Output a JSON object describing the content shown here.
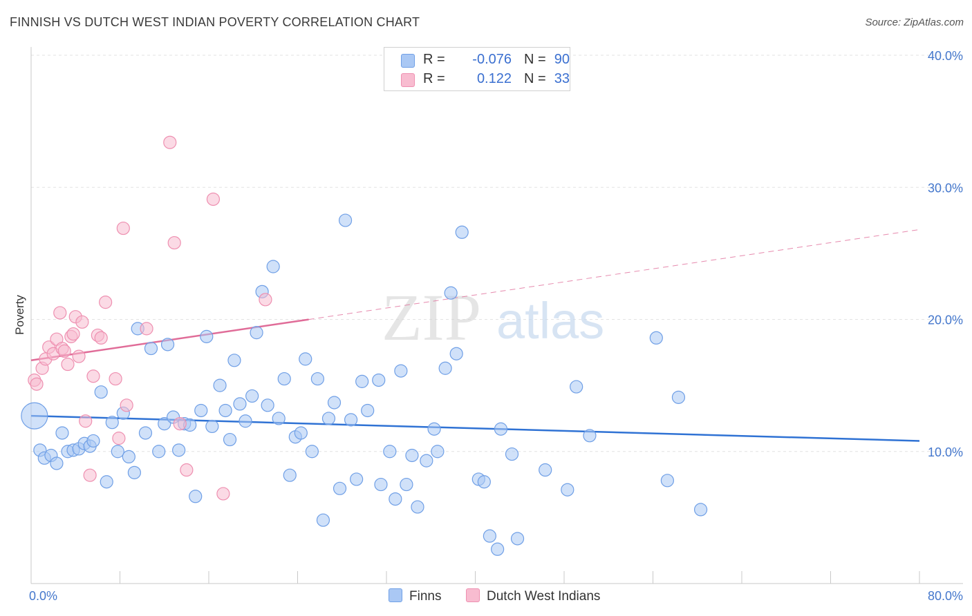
{
  "header": {
    "title": "FINNISH VS DUTCH WEST INDIAN POVERTY CORRELATION CHART",
    "source": "Source: ZipAtlas.com"
  },
  "watermark": {
    "zip": "ZIP",
    "atlas": "atlas"
  },
  "legend": {
    "rows": [
      {
        "r_label": "R =",
        "r_value": "-0.076",
        "n_label": "N =",
        "n_value": "90",
        "color": "#aac8f4"
      },
      {
        "r_label": "R =",
        "r_value": "0.122",
        "n_label": "N =",
        "n_value": "33",
        "color": "#f8bcd0"
      }
    ]
  },
  "bottom_legend": [
    {
      "label": "Finns",
      "color": "#aac8f4"
    },
    {
      "label": "Dutch West Indians",
      "color": "#f8bcd0"
    }
  ],
  "chart_data": {
    "type": "scatter",
    "title": "FINNISH VS DUTCH WEST INDIAN POVERTY CORRELATION CHART",
    "xlabel": "",
    "ylabel": "Poverty",
    "xlim": [
      0,
      80
    ],
    "ylim": [
      0,
      40
    ],
    "x_tick_labels": [
      "0.0%",
      "80.0%"
    ],
    "y_ticks": [
      10,
      20,
      30,
      40
    ],
    "y_tick_labels": [
      "10.0%",
      "20.0%",
      "30.0%",
      "40.0%"
    ],
    "grid": true,
    "legend_position": "top-center",
    "series": [
      {
        "name": "Finns",
        "color": "#6f9fe6",
        "fill": "#aac8f4",
        "trend": {
          "x": [
            0,
            80
          ],
          "y": [
            12.7,
            10.8
          ],
          "color": "#2f72d4",
          "dashed_from": null
        },
        "points": [
          [
            0.3,
            12.7,
            "large"
          ],
          [
            0.8,
            10.1
          ],
          [
            1.2,
            9.5
          ],
          [
            1.8,
            9.7
          ],
          [
            2.3,
            9.1
          ],
          [
            2.8,
            11.4
          ],
          [
            3.3,
            10.0
          ],
          [
            3.8,
            10.1
          ],
          [
            4.3,
            10.2
          ],
          [
            4.8,
            10.6
          ],
          [
            5.3,
            10.4
          ],
          [
            5.6,
            10.8
          ],
          [
            6.3,
            14.5
          ],
          [
            6.8,
            7.7
          ],
          [
            7.3,
            12.2
          ],
          [
            7.8,
            10.0
          ],
          [
            8.3,
            12.9
          ],
          [
            8.8,
            9.6
          ],
          [
            9.3,
            8.4
          ],
          [
            9.6,
            19.3
          ],
          [
            10.3,
            11.4
          ],
          [
            10.8,
            17.8
          ],
          [
            11.5,
            10.0
          ],
          [
            12.0,
            12.1
          ],
          [
            12.3,
            18.1
          ],
          [
            12.8,
            12.6
          ],
          [
            13.3,
            10.1
          ],
          [
            13.8,
            12.1
          ],
          [
            14.3,
            12.0
          ],
          [
            14.8,
            6.6
          ],
          [
            15.3,
            13.1
          ],
          [
            15.8,
            18.7
          ],
          [
            16.3,
            11.9
          ],
          [
            17.0,
            15.0
          ],
          [
            17.5,
            13.1
          ],
          [
            17.9,
            10.9
          ],
          [
            18.3,
            16.9
          ],
          [
            18.8,
            13.6
          ],
          [
            19.3,
            12.3
          ],
          [
            19.9,
            14.2
          ],
          [
            20.3,
            19.0
          ],
          [
            20.8,
            22.1
          ],
          [
            21.3,
            13.5
          ],
          [
            21.8,
            24.0
          ],
          [
            22.3,
            12.5
          ],
          [
            22.8,
            15.5
          ],
          [
            23.3,
            8.2
          ],
          [
            23.8,
            11.1
          ],
          [
            24.3,
            11.4
          ],
          [
            24.7,
            17.0
          ],
          [
            25.3,
            10.0
          ],
          [
            25.8,
            15.5
          ],
          [
            26.3,
            4.8
          ],
          [
            26.8,
            12.5
          ],
          [
            27.3,
            13.7
          ],
          [
            27.8,
            7.2
          ],
          [
            28.3,
            27.5
          ],
          [
            28.8,
            12.4
          ],
          [
            29.3,
            7.9
          ],
          [
            29.8,
            15.3
          ],
          [
            30.3,
            13.1
          ],
          [
            31.3,
            15.4
          ],
          [
            31.5,
            7.5
          ],
          [
            32.3,
            10.0
          ],
          [
            32.8,
            6.4
          ],
          [
            33.3,
            16.1
          ],
          [
            33.8,
            7.5
          ],
          [
            34.3,
            9.7
          ],
          [
            34.8,
            5.8
          ],
          [
            35.6,
            9.3
          ],
          [
            36.3,
            11.7
          ],
          [
            36.6,
            10.0
          ],
          [
            37.3,
            16.3
          ],
          [
            37.8,
            22.0
          ],
          [
            38.3,
            17.4
          ],
          [
            38.8,
            26.6
          ],
          [
            40.3,
            7.9
          ],
          [
            40.8,
            7.7
          ],
          [
            41.3,
            3.6
          ],
          [
            42.3,
            11.7
          ],
          [
            42.0,
            2.6
          ],
          [
            43.3,
            9.8
          ],
          [
            43.8,
            3.4
          ],
          [
            46.3,
            8.6
          ],
          [
            48.3,
            7.1
          ],
          [
            49.1,
            14.9
          ],
          [
            50.3,
            11.2
          ],
          [
            56.3,
            18.6
          ],
          [
            57.3,
            7.8
          ],
          [
            58.3,
            14.1
          ],
          [
            60.3,
            5.6
          ]
        ]
      },
      {
        "name": "Dutch West Indians",
        "color": "#ee8fb0",
        "fill": "#f8bcd0",
        "trend": {
          "x": [
            0,
            80
          ],
          "y": [
            16.9,
            26.8
          ],
          "color": "#e06c98",
          "solid_until_x": 25
        },
        "points": [
          [
            0.3,
            15.4
          ],
          [
            0.5,
            15.1
          ],
          [
            1.0,
            16.3
          ],
          [
            1.3,
            17.0
          ],
          [
            1.6,
            17.9
          ],
          [
            2.0,
            17.4
          ],
          [
            2.3,
            18.5
          ],
          [
            2.6,
            20.5
          ],
          [
            2.8,
            17.8
          ],
          [
            3.0,
            17.6
          ],
          [
            3.3,
            16.6
          ],
          [
            3.6,
            18.7
          ],
          [
            3.8,
            18.9
          ],
          [
            4.0,
            20.2
          ],
          [
            4.3,
            17.2
          ],
          [
            4.6,
            19.8
          ],
          [
            4.9,
            12.3
          ],
          [
            5.3,
            8.2
          ],
          [
            5.6,
            15.7
          ],
          [
            6.0,
            18.8
          ],
          [
            6.3,
            18.6
          ],
          [
            6.7,
            21.3
          ],
          [
            7.6,
            15.5
          ],
          [
            7.9,
            11.0
          ],
          [
            8.3,
            26.9
          ],
          [
            8.6,
            13.5
          ],
          [
            10.4,
            19.3
          ],
          [
            12.5,
            33.4
          ],
          [
            12.9,
            25.8
          ],
          [
            13.4,
            12.1
          ],
          [
            14.0,
            8.6
          ],
          [
            16.4,
            29.1
          ],
          [
            17.3,
            6.8
          ],
          [
            21.1,
            21.5
          ]
        ]
      }
    ]
  }
}
